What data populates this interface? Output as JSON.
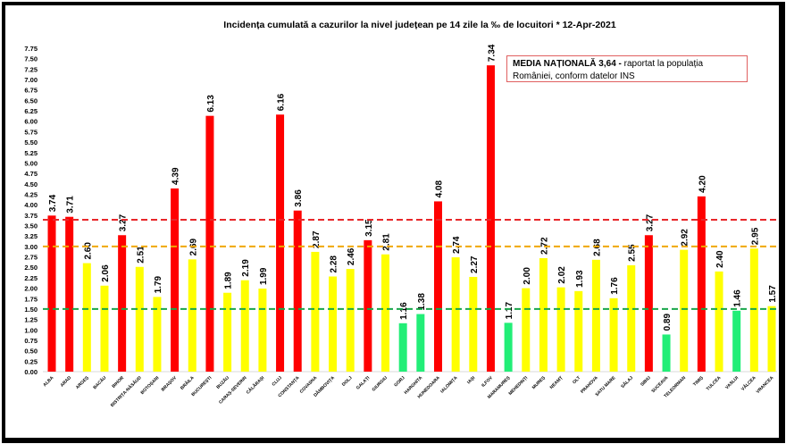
{
  "chart_data": {
    "type": "bar",
    "title": "Incidența cumulată a cazurilor la nivel județean pe 14 zile la ‰ de locuitori *   12-Apr-2021",
    "xlabel": "",
    "ylabel": "",
    "ylim": [
      0,
      7.75
    ],
    "ytick_step": 0.25,
    "grid": false,
    "categories": [
      "ALBA",
      "ARAD",
      "ARGEȘ",
      "BACĂU",
      "BIHOR",
      "BISTRIȚA-NĂSĂUD",
      "BOTOȘANI",
      "BRAȘOV",
      "BRĂILA",
      "BUCUREȘTI",
      "BUZĂU",
      "CARAȘ-SEVERIN",
      "CĂLĂRAȘI",
      "CLUJ",
      "CONSTANȚA",
      "COVASNA",
      "DÂMBOVIȚA",
      "DOLJ",
      "GALAȚI",
      "GIURGIU",
      "GORJ",
      "HARGHITA",
      "HUNEDOARA",
      "IALOMIȚA",
      "IAȘI",
      "ILFOV",
      "MARAMUREȘ",
      "MEHEDINȚI",
      "MUREȘ",
      "NEAMȚ",
      "OLT",
      "PRAHOVA",
      "SATU MARE",
      "SĂLAJ",
      "SIBIU",
      "SUCEAVA",
      "TELEORMAN",
      "TIMIȘ",
      "TULCEA",
      "VASLUI",
      "VÂLCEA",
      "VRANCEA"
    ],
    "values": [
      3.74,
      3.71,
      2.6,
      2.06,
      3.27,
      2.51,
      1.79,
      4.39,
      2.69,
      6.13,
      1.89,
      2.19,
      1.99,
      6.16,
      3.86,
      2.87,
      2.28,
      2.46,
      3.15,
      2.81,
      1.16,
      1.38,
      4.08,
      2.74,
      2.27,
      7.34,
      1.17,
      2.0,
      2.72,
      2.02,
      1.93,
      2.68,
      1.76,
      2.55,
      3.27,
      0.89,
      2.92,
      4.2,
      2.4,
      1.46,
      2.95,
      1.57
    ],
    "thresholds": [
      {
        "value": 3.64,
        "color": "#e8272a",
        "style": "dashed"
      },
      {
        "value": 3.0,
        "color": "#f0a800",
        "style": "dashed"
      },
      {
        "value": 1.5,
        "color": "#19a64a",
        "style": "dashed"
      }
    ],
    "colors": {
      "high": "#ff0000",
      "mid": "#ffff00",
      "low": "#22ee77"
    },
    "annotation": {
      "bold": "MEDIA NAȚIONALĂ  3,64 -",
      "text": " raportat la populația României, conform datelor INS"
    }
  }
}
